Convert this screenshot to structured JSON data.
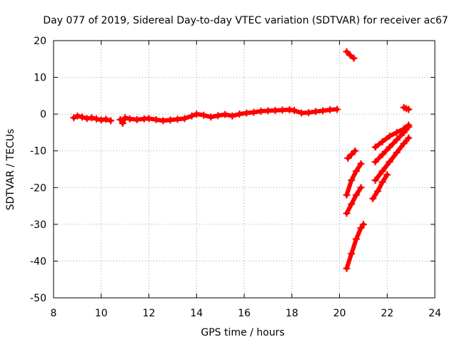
{
  "chart_data": {
    "type": "scatter",
    "title": "Day 077 of 2019, Sidereal Day-to-day VTEC variation (SDTVAR) for receiver ac67",
    "xlabel": "GPS time / hours",
    "ylabel": "SDTVAR / TECUs",
    "xlim": [
      8,
      24
    ],
    "ylim": [
      -50,
      20
    ],
    "xticks": [
      8,
      10,
      12,
      14,
      16,
      18,
      20,
      22,
      24
    ],
    "yticks": [
      20,
      10,
      0,
      -10,
      -20,
      -30,
      -40,
      -50
    ],
    "grid": true,
    "marker": "plus",
    "color": "#ff0000",
    "series": [
      {
        "points": [
          [
            8.85,
            -1.0
          ],
          [
            9.0,
            -0.5
          ],
          [
            9.2,
            -0.8
          ],
          [
            9.4,
            -1.2
          ],
          [
            9.6,
            -1.0
          ],
          [
            9.8,
            -1.3
          ],
          [
            10.0,
            -1.6
          ],
          [
            10.2,
            -1.4
          ],
          [
            10.4,
            -1.8
          ]
        ]
      },
      {
        "points": [
          [
            10.8,
            -1.5
          ],
          [
            10.9,
            -2.5
          ],
          [
            11.0,
            -1.0
          ],
          [
            11.2,
            -1.3
          ],
          [
            11.5,
            -1.5
          ],
          [
            11.8,
            -1.3
          ],
          [
            12.0,
            -1.2
          ],
          [
            12.3,
            -1.5
          ],
          [
            12.6,
            -1.8
          ],
          [
            12.9,
            -1.6
          ],
          [
            13.2,
            -1.4
          ],
          [
            13.5,
            -1.2
          ],
          [
            13.8,
            -0.5
          ],
          [
            14.0,
            0.0
          ],
          [
            14.3,
            -0.3
          ],
          [
            14.6,
            -0.8
          ],
          [
            14.9,
            -0.4
          ],
          [
            15.2,
            -0.1
          ],
          [
            15.5,
            -0.5
          ],
          [
            15.8,
            0.0
          ],
          [
            16.1,
            0.3
          ],
          [
            16.4,
            0.5
          ],
          [
            16.7,
            0.8
          ],
          [
            17.0,
            0.9
          ],
          [
            17.3,
            1.0
          ],
          [
            17.6,
            1.1
          ],
          [
            17.9,
            1.2
          ],
          [
            18.1,
            1.0
          ],
          [
            18.4,
            0.3
          ],
          [
            18.7,
            0.4
          ],
          [
            19.0,
            0.7
          ],
          [
            19.3,
            0.9
          ],
          [
            19.6,
            1.2
          ],
          [
            19.9,
            1.3
          ]
        ]
      },
      {
        "points": [
          [
            20.3,
            17.0
          ],
          [
            20.45,
            16.0
          ],
          [
            20.6,
            15.2
          ]
        ]
      },
      {
        "points": [
          [
            20.35,
            -12.0
          ],
          [
            20.5,
            -11.0
          ],
          [
            20.65,
            -10.0
          ]
        ]
      },
      {
        "points": [
          [
            20.3,
            -22.0
          ],
          [
            20.5,
            -18.0
          ],
          [
            20.7,
            -15.5
          ],
          [
            20.9,
            -13.5
          ]
        ]
      },
      {
        "points": [
          [
            20.3,
            -27.0
          ],
          [
            20.5,
            -24.5
          ],
          [
            20.7,
            -22.0
          ],
          [
            20.9,
            -20.0
          ]
        ]
      },
      {
        "points": [
          [
            20.3,
            -42.0
          ],
          [
            20.5,
            -38.0
          ],
          [
            20.7,
            -34.0
          ],
          [
            20.9,
            -31.0
          ],
          [
            21.0,
            -30.0
          ]
        ]
      },
      {
        "points": [
          [
            21.5,
            -9.0
          ],
          [
            21.8,
            -7.5
          ],
          [
            22.1,
            -6.0
          ],
          [
            22.4,
            -5.0
          ],
          [
            22.7,
            -4.0
          ],
          [
            22.9,
            -3.0
          ]
        ]
      },
      {
        "points": [
          [
            21.5,
            -13.0
          ],
          [
            21.8,
            -11.0
          ],
          [
            22.1,
            -9.0
          ],
          [
            22.4,
            -7.0
          ],
          [
            22.7,
            -5.0
          ],
          [
            22.9,
            -3.5
          ]
        ]
      },
      {
        "points": [
          [
            21.5,
            -18.0
          ],
          [
            21.8,
            -15.5
          ],
          [
            22.1,
            -13.0
          ],
          [
            22.4,
            -10.5
          ],
          [
            22.7,
            -8.0
          ],
          [
            22.9,
            -6.5
          ]
        ]
      },
      {
        "points": [
          [
            21.4,
            -23.0
          ],
          [
            21.6,
            -21.0
          ],
          [
            21.8,
            -18.5
          ],
          [
            22.0,
            -16.5
          ]
        ]
      },
      {
        "points": [
          [
            22.7,
            1.8
          ],
          [
            22.8,
            1.5
          ],
          [
            22.9,
            1.3
          ]
        ]
      }
    ]
  }
}
